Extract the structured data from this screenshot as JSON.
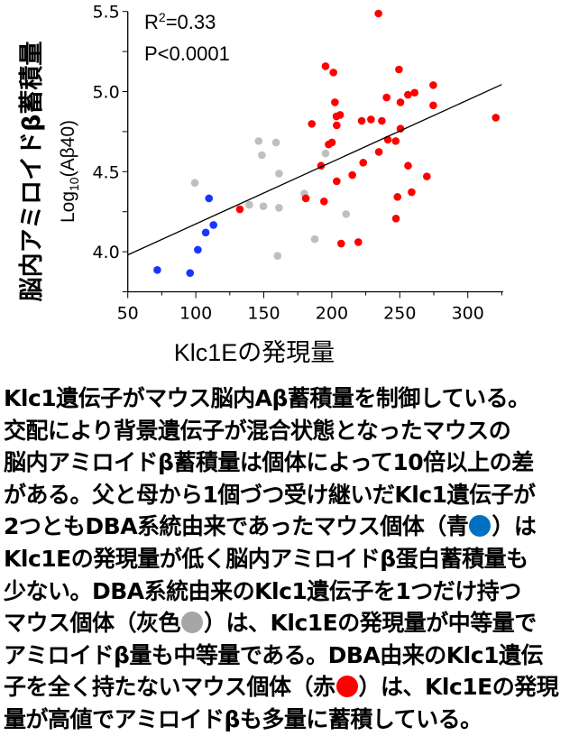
{
  "chart_data": {
    "type": "scatter",
    "xlabel": "Klc1Eの発現量",
    "ylabel_main": "脳内アミロイドβ蓄積量",
    "ylabel_sub": "Log10(Aβ40)",
    "xlim": [
      50,
      326
    ],
    "ylim": [
      3.75,
      5.5
    ],
    "x_ticks": [
      50,
      100,
      150,
      200,
      250,
      300
    ],
    "y_ticks": [
      4.0,
      4.5,
      5.0,
      5.5
    ],
    "y_tick_labels": [
      "4.0",
      "4.5",
      "5.0",
      "5.5"
    ],
    "grid": false,
    "annotations": {
      "r2": "R²=0.33",
      "p": "P<0.0001"
    },
    "regression_line": {
      "x": [
        50,
        325
      ],
      "y": [
        3.98,
        5.044
      ]
    },
    "series": [
      {
        "color": "#1a35ff",
        "points": [
          [
            71.7,
            3.886
          ],
          [
            95.8,
            3.867
          ],
          [
            101.5,
            4.012
          ],
          [
            107.3,
            4.12
          ],
          [
            113.0,
            4.167
          ],
          [
            109.7,
            4.333
          ]
        ]
      },
      {
        "color": "#bfbfbf",
        "points": [
          [
            99.3,
            4.43
          ],
          [
            146.2,
            4.691
          ],
          [
            159.0,
            4.682
          ],
          [
            148.6,
            4.603
          ],
          [
            161.2,
            4.488
          ],
          [
            139.3,
            4.293
          ],
          [
            149.7,
            4.284
          ],
          [
            161.2,
            4.274
          ],
          [
            160.1,
            3.974
          ],
          [
            179.8,
            4.363
          ],
          [
            187.5,
            4.079
          ],
          [
            195.4,
            4.614
          ],
          [
            210.5,
            4.235
          ]
        ]
      },
      {
        "color": "#ff0000",
        "points": [
          [
            234.3,
            5.487
          ],
          [
            195.4,
            5.158
          ],
          [
            201.2,
            5.119
          ],
          [
            249.4,
            5.138
          ],
          [
            274.6,
            5.04
          ],
          [
            240.3,
            4.963
          ],
          [
            256.0,
            4.98
          ],
          [
            260.9,
            4.993
          ],
          [
            202.3,
            4.933
          ],
          [
            250.5,
            4.933
          ],
          [
            274.6,
            4.914
          ],
          [
            203.4,
            4.845
          ],
          [
            206.1,
            4.854
          ],
          [
            185.3,
            4.798
          ],
          [
            203.6,
            4.789
          ],
          [
            222.0,
            4.817
          ],
          [
            228.8,
            4.826
          ],
          [
            236.8,
            4.817
          ],
          [
            320.6,
            4.837
          ],
          [
            250.5,
            4.768
          ],
          [
            197.7,
            4.67
          ],
          [
            200.1,
            4.682
          ],
          [
            241.2,
            4.7
          ],
          [
            247.0,
            4.691
          ],
          [
            234.6,
            4.623
          ],
          [
            223.1,
            4.556
          ],
          [
            192.1,
            4.537
          ],
          [
            256.1,
            4.537
          ],
          [
            215.1,
            4.479
          ],
          [
            269.9,
            4.47
          ],
          [
            203.6,
            4.44
          ],
          [
            180.9,
            4.333
          ],
          [
            194.3,
            4.314
          ],
          [
            132.4,
            4.265
          ],
          [
            248.3,
            4.342
          ],
          [
            258.7,
            4.372
          ],
          [
            247.2,
            4.207
          ],
          [
            206.9,
            4.051
          ],
          [
            219.5,
            4.06
          ]
        ]
      }
    ]
  },
  "description": {
    "lines": [
      "Klc1遺伝子がマウス脳内Aβ蓄積量を制御している。",
      "交配により背景遺伝子が混合状態となったマウスの",
      "脳内アミロイドβ蓄積量は個体によって10倍以上の差",
      "がある。父と母から1個づつ受け継いだKlc1遺伝子が",
      "2つともDBA系統由来であったマウス個体（青",
      "）は",
      "Klc1Eの発現量が低く脳内アミロイドβ蛋白蓄積量も",
      "少ない。DBA系統由来のKlc1遺伝子を1つだけ持つ",
      "マウス個体（灰色",
      "）は、Klc1Eの発現量が中等量で",
      "アミロイドβ量も中等量である。DBA由来のKlc1遺伝",
      "子を全く持たないマウス個体（赤",
      "）は、Klc1Eの発現",
      "量が高値でアミロイドβも多量に蓄積している。"
    ],
    "dot_colors": {
      "blue": "#0070c0",
      "grey": "#a6a6a6",
      "red": "#ff0000"
    }
  }
}
